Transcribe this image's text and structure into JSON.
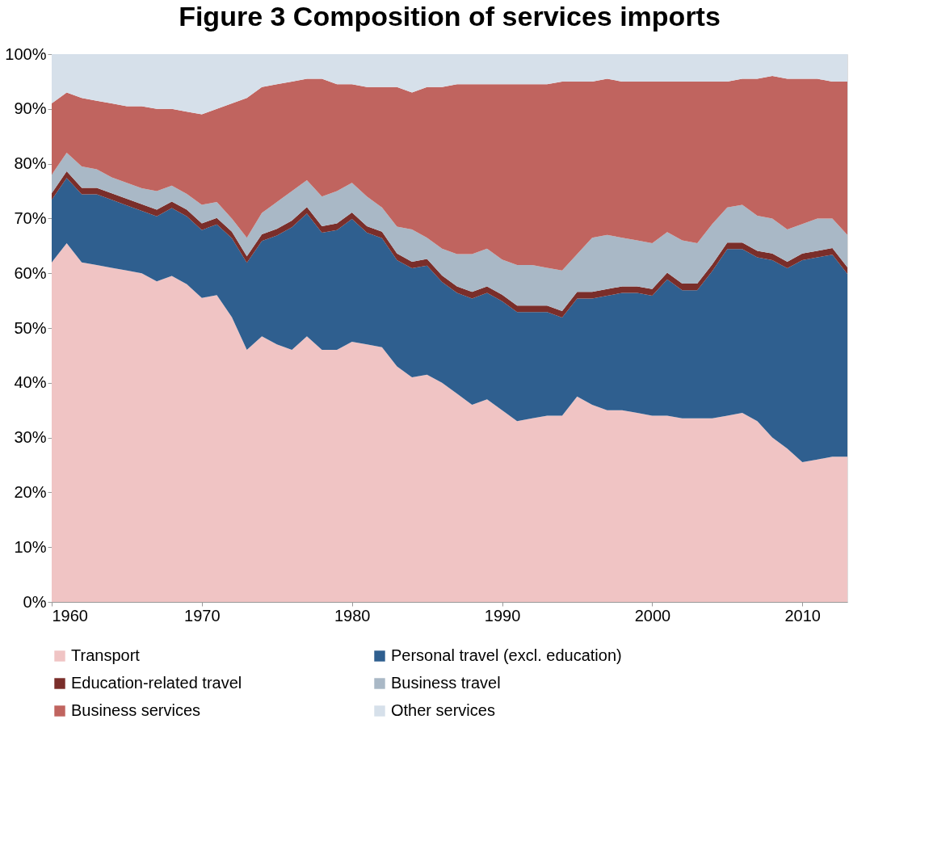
{
  "chart_data": {
    "type": "area",
    "stacked": true,
    "title": "Figure 3  Composition of services imports",
    "x": [
      1960,
      1961,
      1962,
      1963,
      1964,
      1965,
      1966,
      1967,
      1968,
      1969,
      1970,
      1971,
      1972,
      1973,
      1974,
      1975,
      1976,
      1977,
      1978,
      1979,
      1980,
      1981,
      1982,
      1983,
      1984,
      1985,
      1986,
      1987,
      1988,
      1989,
      1990,
      1991,
      1992,
      1993,
      1994,
      1995,
      1996,
      1997,
      1998,
      1999,
      2000,
      2001,
      2002,
      2003,
      2004,
      2005,
      2006,
      2007,
      2008,
      2009,
      2010,
      2011,
      2012,
      2013
    ],
    "series": [
      {
        "name": "Transport",
        "color": "#f0c4c4",
        "values": [
          62,
          65.5,
          62,
          61.5,
          61,
          60.5,
          60,
          58.5,
          59.5,
          58,
          55.5,
          56,
          52,
          46,
          48.5,
          47,
          46,
          48.5,
          46,
          46,
          47.5,
          47,
          46.5,
          43,
          41,
          41.5,
          40,
          38,
          36,
          37,
          35,
          33,
          33.5,
          34,
          34,
          37.5,
          36,
          35,
          35,
          34.5,
          34,
          34,
          33.5,
          33.5,
          33.5,
          34,
          34.5,
          33,
          30,
          28,
          25.5,
          26,
          26.5,
          26.5
        ]
      },
      {
        "name": "Personal travel (excl. education)",
        "color": "#2f5f8f",
        "values": [
          11.4,
          11.9,
          12.4,
          12.9,
          12.4,
          11.9,
          11.4,
          11.9,
          12.4,
          12.4,
          12.4,
          12.9,
          14.4,
          15.9,
          17.4,
          19.9,
          22.4,
          22.4,
          21.4,
          21.9,
          22.4,
          20.4,
          19.9,
          19.4,
          19.9,
          19.9,
          18.4,
          18.4,
          19.4,
          19.4,
          19.9,
          19.9,
          19.4,
          18.9,
          17.9,
          17.9,
          19.4,
          20.9,
          21.4,
          21.9,
          21.9,
          24.9,
          23.4,
          23.4,
          26.9,
          30.4,
          29.9,
          29.9,
          32.4,
          32.9,
          36.9,
          36.9,
          36.9,
          33.4
        ]
      },
      {
        "name": "Education-related travel",
        "color": "#7a2e2a",
        "values": [
          1.2,
          1.2,
          1.2,
          1.2,
          1.2,
          1.2,
          1.2,
          1.2,
          1.2,
          1.2,
          1.2,
          1.2,
          1.2,
          1.2,
          1.2,
          1.2,
          1.2,
          1.2,
          1.2,
          1.2,
          1.2,
          1.2,
          1.2,
          1.2,
          1.2,
          1.2,
          1.2,
          1.2,
          1.2,
          1.2,
          1.2,
          1.2,
          1.2,
          1.2,
          1.2,
          1.2,
          1.2,
          1.2,
          1.2,
          1.2,
          1.2,
          1.2,
          1.2,
          1.2,
          1.2,
          1.2,
          1.2,
          1.2,
          1.2,
          1.2,
          1.2,
          1.2,
          1.2,
          1.2
        ]
      },
      {
        "name": "Business travel",
        "color": "#a9b8c6",
        "values": [
          3.4,
          3.4,
          3.9,
          3.4,
          2.9,
          2.9,
          2.9,
          3.4,
          2.9,
          2.9,
          3.4,
          2.9,
          2.4,
          3.4,
          3.9,
          4.9,
          5.4,
          4.9,
          5.4,
          5.9,
          5.4,
          5.4,
          4.4,
          4.9,
          5.9,
          3.9,
          4.9,
          5.9,
          6.9,
          6.9,
          6.4,
          7.4,
          7.4,
          6.9,
          7.4,
          6.9,
          9.9,
          9.9,
          8.9,
          8.4,
          8.4,
          7.4,
          7.9,
          7.4,
          7.4,
          6.4,
          6.9,
          6.4,
          6.4,
          5.9,
          5.4,
          5.9,
          5.4,
          5.9
        ]
      },
      {
        "name": "Business services",
        "color": "#c0645f",
        "values": [
          13,
          11,
          12.5,
          12.5,
          13.5,
          14,
          15,
          15,
          14,
          15,
          16.5,
          17,
          21,
          25.5,
          23,
          21.5,
          20,
          18.5,
          21.5,
          19.5,
          18,
          20,
          22,
          25.5,
          25,
          27.5,
          29.5,
          31,
          31,
          30,
          32,
          33,
          33,
          33.5,
          34.5,
          31.5,
          28.5,
          28.5,
          28.5,
          29,
          29.5,
          27.5,
          29,
          29.5,
          26,
          23,
          23,
          25,
          26,
          27.5,
          26.5,
          25.5,
          25,
          28
        ]
      },
      {
        "name": "Other services",
        "color": "#d6e0ea",
        "values": [
          9,
          7,
          8,
          8.5,
          9,
          9.5,
          9.5,
          10,
          10,
          10.5,
          11,
          10,
          9,
          8,
          6,
          5.5,
          5,
          4.5,
          4.5,
          5.5,
          5.5,
          6,
          6,
          6,
          7,
          6,
          6,
          5.5,
          5.5,
          5.5,
          5.5,
          5.5,
          5.5,
          5.5,
          5,
          5,
          5,
          4.5,
          5,
          5,
          5,
          5,
          5,
          5,
          5,
          5,
          4.5,
          4.5,
          4,
          4.5,
          4.5,
          4.5,
          5,
          5
        ]
      }
    ],
    "xlim": [
      1960,
      2013
    ],
    "xticks": [
      1960,
      1970,
      1980,
      1990,
      2000,
      2010
    ],
    "ylim": [
      0,
      100
    ],
    "yticks": [
      {
        "value": 0,
        "label": "0%"
      },
      {
        "value": 10,
        "label": "10%"
      },
      {
        "value": 20,
        "label": "20%"
      },
      {
        "value": 30,
        "label": "30%"
      },
      {
        "value": 40,
        "label": "40%"
      },
      {
        "value": 50,
        "label": "50%"
      },
      {
        "value": 60,
        "label": "60%"
      },
      {
        "value": 70,
        "label": "70%"
      },
      {
        "value": 80,
        "label": "80%"
      },
      {
        "value": 90,
        "label": "90%"
      },
      {
        "value": 100,
        "label": "100%"
      }
    ],
    "grid": false,
    "legend": "bottom"
  }
}
